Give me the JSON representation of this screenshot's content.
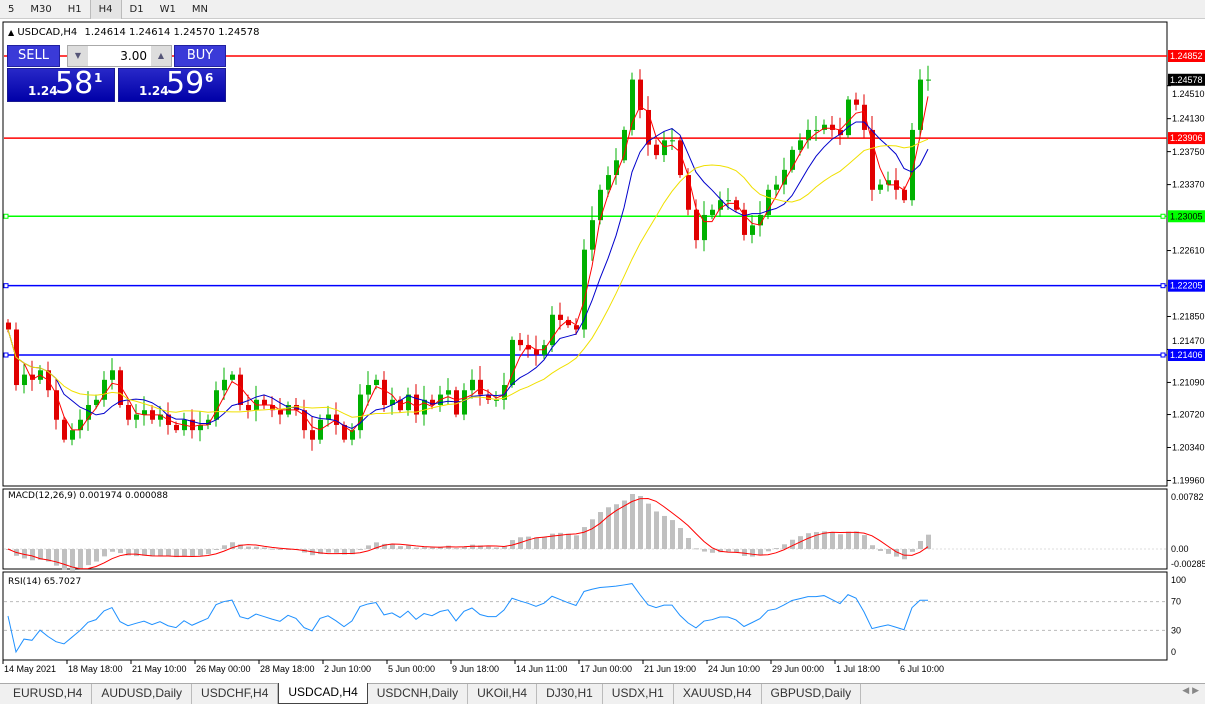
{
  "timeframes": [
    "5",
    "M30",
    "H1",
    "H4",
    "D1",
    "W1",
    "MN"
  ],
  "active_timeframe": "H4",
  "header": {
    "symbol": "USDCAD,H4",
    "ohlc": "1.24614 1.24614 1.24570 1.24578"
  },
  "trade_panel": {
    "sell_label": "SELL",
    "buy_label": "BUY",
    "lot": "3.00",
    "sell": {
      "prefix": "1.24",
      "large": "58",
      "sup": "1"
    },
    "buy": {
      "prefix": "1.24",
      "large": "59",
      "sup": "6"
    }
  },
  "colors": {
    "bull": "#00b000",
    "bear": "#e00000",
    "ma_fast": "#ff0000",
    "ma_mid": "#0000cc",
    "ma_slow": "#f0e000",
    "macd_hist": "#c0c0c0",
    "macd_signal": "#ff0000",
    "rsi": "#1e90ff"
  },
  "chart_data": {
    "type": "candlestick",
    "symbol": "USDCAD",
    "timeframe": "H4",
    "closes": [
      1.217,
      1.2106,
      1.2118,
      1.2112,
      1.2123,
      1.21,
      1.2066,
      1.2043,
      1.2054,
      1.2066,
      1.2083,
      1.2089,
      1.2112,
      1.2123,
      1.2083,
      1.2066,
      1.2072,
      1.2077,
      1.2066,
      1.2072,
      1.206,
      1.2054,
      1.2066,
      1.2054,
      1.206,
      1.2066,
      1.21,
      1.2112,
      1.2118,
      1.2083,
      1.2077,
      1.2089,
      1.2083,
      1.2077,
      1.2072,
      1.2083,
      1.2077,
      1.2054,
      1.2043,
      1.2066,
      1.2072,
      1.206,
      1.2043,
      1.2054,
      1.2095,
      1.2106,
      1.2112,
      1.2083,
      1.2089,
      1.2077,
      1.2095,
      1.2072,
      1.2089,
      1.2083,
      1.2095,
      1.21,
      1.2072,
      1.21,
      1.2112,
      1.2095,
      1.2089,
      1.2089,
      1.2106,
      1.2158,
      1.2152,
      1.2147,
      1.2141,
      1.2152,
      1.2187,
      1.2181,
      1.2175,
      1.217,
      1.2262,
      1.2296,
      1.2331,
      1.2348,
      1.2365,
      1.24,
      1.2458,
      1.2423,
      1.2383,
      1.2371,
      1.2388,
      1.2388,
      1.2348,
      1.2308,
      1.2273,
      1.2302,
      1.2308,
      1.2319,
      1.2319,
      1.2308,
      1.2279,
      1.229,
      1.2302,
      1.2331,
      1.2337,
      1.2354,
      1.2377,
      1.2388,
      1.24,
      1.24,
      1.2406,
      1.24,
      1.2394,
      1.2435,
      1.2429,
      1.24,
      1.2331,
      1.2337,
      1.2342,
      1.2331,
      1.2319,
      1.24,
      1.2458,
      1.2458
    ],
    "price_ticks": [
      "1.24510",
      "1.24130",
      "1.23750",
      "1.23370",
      "1.22610",
      "1.21850",
      "1.21470",
      "1.21090",
      "1.20720",
      "1.20340",
      "1.19960"
    ],
    "current_price": "1.24578",
    "levels": [
      {
        "price": "1.24852",
        "color": "#ff0000"
      },
      {
        "price": "1.23906",
        "color": "#ff0000"
      },
      {
        "price": "1.23005",
        "color": "#00ff00"
      },
      {
        "price": "1.22205",
        "color": "#0000ff"
      },
      {
        "price": "1.21406",
        "color": "#0000ff"
      }
    ],
    "time_labels": [
      "14 May 2021",
      "18 May 18:00",
      "21 May 10:00",
      "26 May 00:00",
      "28 May 18:00",
      "2 Jun 10:00",
      "5 Jun 00:00",
      "9 Jun 18:00",
      "14 Jun 11:00",
      "17 Jun 00:00",
      "21 Jun 19:00",
      "24 Jun 10:00",
      "29 Jun 00:00",
      "1 Jul 18:00",
      "6 Jul 10:00"
    ],
    "macd": {
      "label": "MACD(12,26,9) 0.001974 0.000088",
      "ticks": [
        "0.00782",
        "0.00",
        "-0.00285"
      ]
    },
    "rsi": {
      "label": "RSI(14) 65.7027",
      "ticks": [
        "100",
        "70",
        "30",
        "0"
      ]
    }
  },
  "tabs": [
    "EURUSD,H4",
    "AUDUSD,Daily",
    "USDCHF,H4",
    "USDCAD,H4",
    "USDCNH,Daily",
    "UKOil,H4",
    "DJ30,H1",
    "USDX,H1",
    "XAUUSD,H4",
    "GBPUSD,Daily"
  ],
  "active_tab": "USDCAD,H4"
}
